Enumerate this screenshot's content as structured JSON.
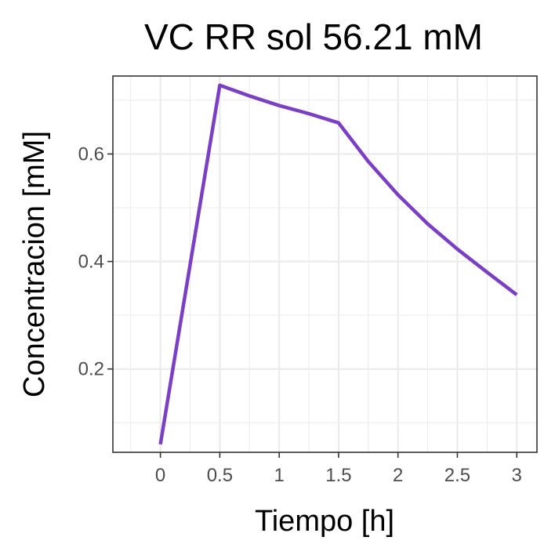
{
  "chart_data": {
    "type": "line",
    "title": "VC RR sol 56.21 mM",
    "xlabel": "Tiempo [h]",
    "ylabel": "Concentracion [mM]",
    "xlim": [
      -0.4,
      3.17
    ],
    "ylim": [
      0.045,
      0.745
    ],
    "x_ticks": [
      0,
      0.5,
      1,
      1.5,
      2,
      2.5,
      3
    ],
    "x_tick_labels": [
      "0",
      "0.5",
      "1",
      "1.5",
      "2",
      "2.5",
      "3"
    ],
    "y_ticks": [
      0.2,
      0.4,
      0.6
    ],
    "y_tick_labels": [
      "0.2",
      "0.4",
      "0.6"
    ],
    "grid": true,
    "series": [
      {
        "color": "#7B3FC4",
        "x": [
          0,
          0.5,
          0.75,
          1.0,
          1.25,
          1.5,
          1.75,
          2.0,
          2.25,
          2.5,
          2.75,
          3.0
        ],
        "y": [
          0.06,
          0.728,
          0.708,
          0.69,
          0.675,
          0.658,
          0.586,
          0.524,
          0.47,
          0.423,
          0.38,
          0.338
        ]
      }
    ]
  }
}
